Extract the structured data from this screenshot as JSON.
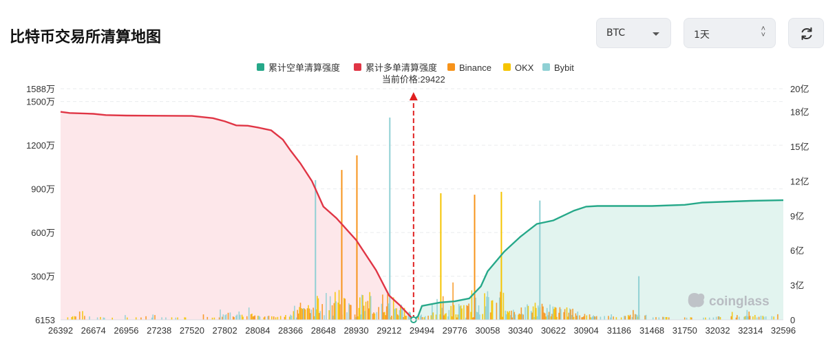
{
  "title": "比特币交易所清算地图",
  "controls": {
    "coin_value": "BTC",
    "range_value": "1天"
  },
  "icons": {
    "refresh": "refresh-icon",
    "caret": "chevron-down-icon",
    "updown": "updown-chevron-icon",
    "logo": "coinglass-logo"
  },
  "watermark": "coinglass",
  "colors": {
    "short_cum": "#26a889",
    "long_cum": "#e03545",
    "binance": "#f7931a",
    "okx": "#f5c400",
    "bybit": "#8fd0d4",
    "price_line": "#e02020"
  },
  "chart_data": {
    "type": "bar+line",
    "legend": [
      {
        "key": "short_cum",
        "label": "累计空单清算强度"
      },
      {
        "key": "long_cum",
        "label": "累计多单清算强度"
      },
      {
        "key": "binance",
        "label": "Binance"
      },
      {
        "key": "okx",
        "label": "OKX"
      },
      {
        "key": "bybit",
        "label": "Bybit"
      }
    ],
    "current_price_label": "当前价格:29422",
    "current_price": 29422,
    "x_range": [
      26392,
      32596
    ],
    "x_ticks": [
      "26392",
      "26674",
      "26956",
      "27238",
      "27520",
      "27802",
      "28084",
      "28366",
      "28648",
      "28930",
      "29212",
      "29494",
      "29776",
      "30058",
      "30340",
      "30622",
      "30904",
      "31186",
      "31468",
      "31750",
      "32032",
      "32314",
      "32596"
    ],
    "y_left": {
      "range": [
        6153,
        15880000
      ],
      "ticks": [
        {
          "v": 6153,
          "label": "6153"
        },
        {
          "v": 3000000,
          "label": "300万"
        },
        {
          "v": 6000000,
          "label": "600万"
        },
        {
          "v": 9000000,
          "label": "900万"
        },
        {
          "v": 12000000,
          "label": "1200万"
        },
        {
          "v": 15000000,
          "label": "1500万"
        },
        {
          "v": 15880000,
          "label": "1588万"
        }
      ]
    },
    "y_right": {
      "range": [
        0,
        2000000000
      ],
      "ticks": [
        {
          "v": 0,
          "label": "0"
        },
        {
          "v": 300000000,
          "label": "3亿"
        },
        {
          "v": 600000000,
          "label": "6亿"
        },
        {
          "v": 900000000,
          "label": "9亿"
        },
        {
          "v": 1200000000,
          "label": "12亿"
        },
        {
          "v": 1500000000,
          "label": "15亿"
        },
        {
          "v": 1800000000,
          "label": "18亿"
        },
        {
          "v": 2000000000,
          "label": "20亿"
        }
      ]
    },
    "long_cumulative": [
      [
        26392,
        1800000000
      ],
      [
        26470,
        1790000000
      ],
      [
        26674,
        1783000000
      ],
      [
        26780,
        1772000000
      ],
      [
        26956,
        1768000000
      ],
      [
        27238,
        1766000000
      ],
      [
        27520,
        1764000000
      ],
      [
        27700,
        1745000000
      ],
      [
        27802,
        1718000000
      ],
      [
        27900,
        1683000000
      ],
      [
        28000,
        1680000000
      ],
      [
        28084,
        1665000000
      ],
      [
        28200,
        1640000000
      ],
      [
        28300,
        1560000000
      ],
      [
        28366,
        1465000000
      ],
      [
        28450,
        1355000000
      ],
      [
        28550,
        1200000000
      ],
      [
        28648,
        980000000
      ],
      [
        28760,
        880000000
      ],
      [
        28930,
        690000000
      ],
      [
        29100,
        430000000
      ],
      [
        29212,
        210000000
      ],
      [
        29300,
        130000000
      ],
      [
        29380,
        45000000
      ],
      [
        29422,
        0
      ]
    ],
    "short_cumulative": [
      [
        29422,
        0
      ],
      [
        29460,
        30000000
      ],
      [
        29494,
        120000000
      ],
      [
        29650,
        150000000
      ],
      [
        29776,
        160000000
      ],
      [
        29900,
        185000000
      ],
      [
        30000,
        290000000
      ],
      [
        30058,
        420000000
      ],
      [
        30200,
        590000000
      ],
      [
        30340,
        720000000
      ],
      [
        30480,
        830000000
      ],
      [
        30622,
        860000000
      ],
      [
        30800,
        945000000
      ],
      [
        30904,
        980000000
      ],
      [
        31000,
        985000000
      ],
      [
        31468,
        985000000
      ],
      [
        31750,
        995000000
      ],
      [
        31900,
        1015000000
      ],
      [
        32314,
        1030000000
      ],
      [
        32596,
        1035000000
      ]
    ],
    "bar_peaks": [
      {
        "x": 28574,
        "exchange": "bybit",
        "v": 9600000
      },
      {
        "x": 29212,
        "exchange": "bybit",
        "v": 13900000
      },
      {
        "x": 28930,
        "exchange": "binance",
        "v": 11300000
      },
      {
        "x": 28800,
        "exchange": "binance",
        "v": 10300000
      },
      {
        "x": 29940,
        "exchange": "binance",
        "v": 8600000
      },
      {
        "x": 30170,
        "exchange": "okx",
        "v": 8800000
      },
      {
        "x": 29650,
        "exchange": "okx",
        "v": 8700000
      },
      {
        "x": 30500,
        "exchange": "bybit",
        "v": 8200000
      },
      {
        "x": 31350,
        "exchange": "bybit",
        "v": 3000000
      }
    ]
  }
}
